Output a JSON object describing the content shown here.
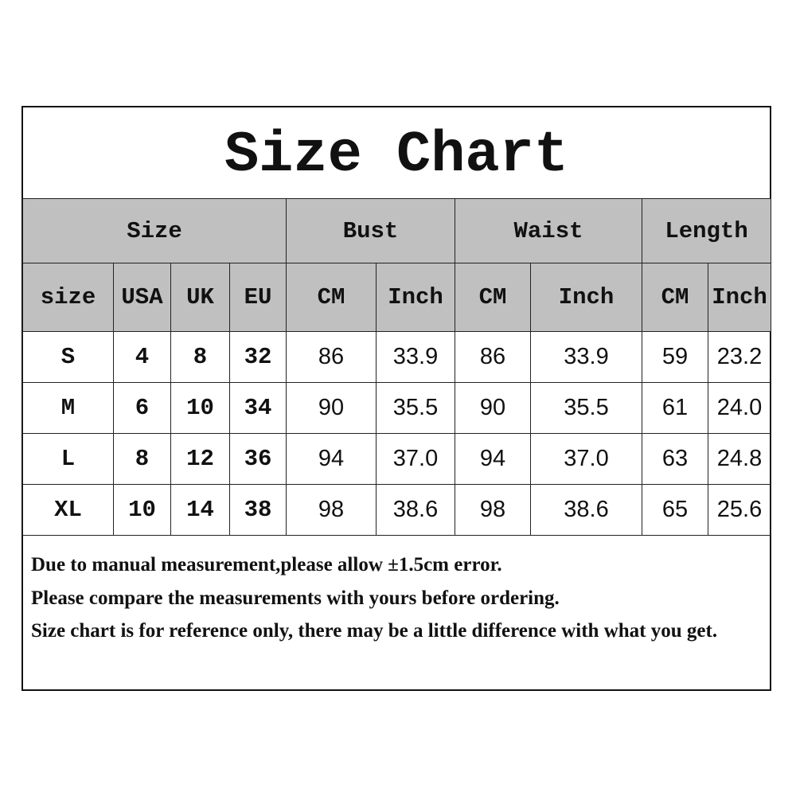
{
  "title": "Size Chart",
  "groups": [
    "Size",
    "Bust",
    "Waist",
    "Length"
  ],
  "subheaders": [
    "size",
    "USA",
    "UK",
    "EU",
    "CM",
    "Inch",
    "CM",
    "Inch",
    "CM",
    "Inch"
  ],
  "rows": [
    [
      "S",
      "4",
      "8",
      "32",
      "86",
      "33.9",
      "86",
      "33.9",
      "59",
      "23.2"
    ],
    [
      "M",
      "6",
      "10",
      "34",
      "90",
      "35.5",
      "90",
      "35.5",
      "61",
      "24.0"
    ],
    [
      "L",
      "8",
      "12",
      "36",
      "94",
      "37.0",
      "94",
      "37.0",
      "63",
      "24.8"
    ],
    [
      "XL",
      "10",
      "14",
      "38",
      "98",
      "38.6",
      "98",
      "38.6",
      "65",
      "25.6"
    ]
  ],
  "notes": [
    "Due to manual measurement,please allow ±1.5cm error.",
    "Please compare the measurements with yours before ordering.",
    "Size chart is for reference only,  there may be a little difference with what you get."
  ],
  "colors": {
    "header_bg": "#c0c0c0"
  }
}
